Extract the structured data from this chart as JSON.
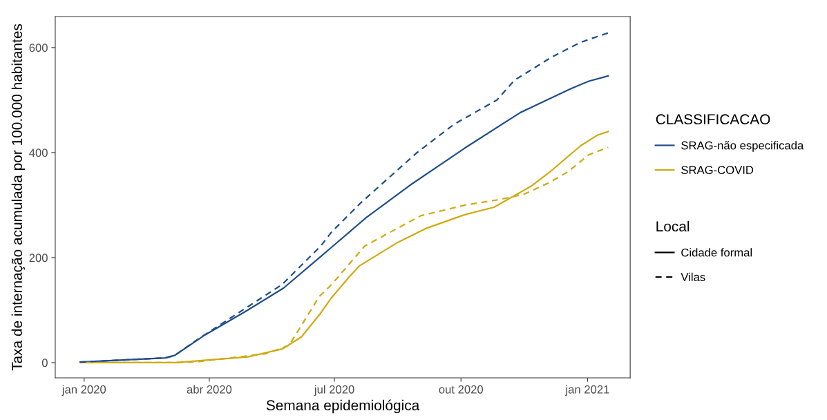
{
  "chart_data": {
    "type": "line",
    "xlabel": "Semana epidemiológica",
    "ylabel": "Taxa de internação acumulada por 100.000 habitantes",
    "legend_title": [
      "CLASSIFICACAO",
      "Local"
    ],
    "annotations": [
      "Cidade formal",
      "Vilas"
    ],
    "xlim": [
      "2019-12-11",
      "2021-02-01"
    ],
    "xticks": [
      {
        "value": "2020-01-01",
        "label": "jan 2020"
      },
      {
        "value": "2020-04-01",
        "label": "abr 2020"
      },
      {
        "value": "2020-07-01",
        "label": "jul 2020"
      },
      {
        "value": "2020-10-01",
        "label": "out 2020"
      },
      {
        "value": "2021-01-01",
        "label": "jan 2021"
      }
    ],
    "ylim": [
      -29,
      659
    ],
    "yticks": [
      0,
      200,
      400,
      600
    ],
    "grid": false,
    "legend": "right",
    "marker": "none",
    "series": [
      {
        "name": "SRAG-não especificada",
        "color": "#1f4e8c",
        "line_style": "solid",
        "x": [
          "2019-12-29",
          "2020-02-29",
          "2020-03-07",
          "2020-03-29",
          "2020-04-27",
          "2020-05-25",
          "2020-06-21",
          "2020-06-29",
          "2020-07-24",
          "2020-08-25",
          "2020-10-04",
          "2020-11-13",
          "2020-12-20",
          "2021-01-02",
          "2021-01-16"
        ],
        "values": [
          1,
          9,
          14,
          53,
          97,
          142,
          202,
          220,
          276,
          338,
          409,
          476,
          522,
          536,
          546
        ]
      },
      {
        "name": "SRAG-COVID",
        "color": "#cfaa12",
        "line_style": "solid",
        "x": [
          "2019-12-29",
          "2020-03-07",
          "2020-04-29",
          "2020-05-24",
          "2020-06-07",
          "2020-06-20",
          "2020-06-29",
          "2020-07-12",
          "2020-07-19",
          "2020-08-16",
          "2020-09-06",
          "2020-10-04",
          "2020-10-25",
          "2020-11-21",
          "2020-12-05",
          "2020-12-27",
          "2021-01-08",
          "2021-01-16"
        ],
        "values": [
          0,
          0,
          11,
          26,
          49,
          91,
          124,
          164,
          184,
          229,
          256,
          282,
          296,
          336,
          364,
          413,
          433,
          440
        ]
      },
      {
        "name": null,
        "color": "#1f4e8c",
        "line_style": "dashed",
        "x": [
          "2019-12-29",
          "2020-02-29",
          "2020-03-07",
          "2020-03-21",
          "2020-05-24",
          "2020-06-21",
          "2020-06-29",
          "2020-07-20",
          "2020-08-30",
          "2020-09-26",
          "2020-10-27",
          "2020-11-09",
          "2020-12-06",
          "2020-12-27",
          "2021-01-16"
        ],
        "values": [
          1,
          9,
          14,
          40,
          149,
          222,
          249,
          304,
          400,
          454,
          500,
          538,
          582,
          610,
          628
        ]
      },
      {
        "name": null,
        "color": "#cfaa12",
        "line_style": "dashed",
        "x": [
          "2019-12-29",
          "2020-03-07",
          "2020-03-21",
          "2020-05-12",
          "2020-05-29",
          "2020-06-20",
          "2020-06-29",
          "2020-07-23",
          "2020-08-25",
          "2020-09-02",
          "2020-10-04",
          "2020-10-30",
          "2020-11-16",
          "2020-12-05",
          "2020-12-18",
          "2021-01-02",
          "2021-01-16"
        ],
        "values": [
          0,
          0,
          1,
          17,
          33,
          126,
          149,
          222,
          269,
          280,
          300,
          311,
          321,
          344,
          364,
          396,
          410
        ]
      }
    ]
  }
}
